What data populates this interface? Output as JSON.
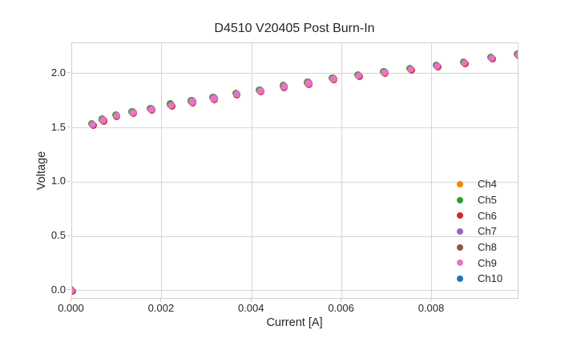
{
  "chart_data": {
    "type": "scatter",
    "title": "D4510 V20405 Post Burn-In",
    "xlabel": "Current [A]",
    "ylabel": "Voltage",
    "xlim": [
      0,
      0.00994
    ],
    "ylim": [
      -0.081,
      2.283
    ],
    "grid": true,
    "legend_position": "lower right",
    "xticks": {
      "values": [
        0,
        0.002,
        0.004,
        0.006,
        0.008
      ],
      "labels": [
        "0.000",
        "0.002",
        "0.004",
        "0.006",
        "0.008"
      ]
    },
    "yticks": {
      "values": [
        0.0,
        0.5,
        1.0,
        1.5,
        2.0
      ],
      "labels": [
        "0.0",
        "0.5",
        "1.0",
        "1.5",
        "2.0"
      ]
    },
    "x": [
      0.0,
      0.00047,
      0.0007,
      0.00099,
      0.00136,
      0.00177,
      0.00221,
      0.00268,
      0.00316,
      0.00366,
      0.00419,
      0.00471,
      0.00526,
      0.00581,
      0.00637,
      0.00695,
      0.00753,
      0.00812,
      0.00872,
      0.00933,
      0.00992
    ],
    "voltage": [
      0.0,
      1.53,
      1.57,
      1.61,
      1.64,
      1.67,
      1.71,
      1.74,
      1.77,
      1.81,
      1.84,
      1.88,
      1.91,
      1.95,
      1.98,
      2.01,
      2.04,
      2.07,
      2.1,
      2.14,
      2.17
    ],
    "series": [
      {
        "name": "Ch4",
        "color": "#ff7f0e"
      },
      {
        "name": "Ch5",
        "color": "#2ca02c"
      },
      {
        "name": "Ch6",
        "color": "#d62728"
      },
      {
        "name": "Ch7",
        "color": "#9467bd"
      },
      {
        "name": "Ch8",
        "color": "#8c564b"
      },
      {
        "name": "Ch9",
        "color": "#e377c2"
      },
      {
        "name": "Ch10",
        "color": "#1f77b4"
      }
    ],
    "overlap_note": "All channels plotted at nearly identical values; Ch9 (pink) markers drawn on top with thin green/red fringes of underlying channels visible at marker edges.",
    "colors": {
      "background": "#ffffff",
      "grid": "#d6d6d6",
      "spine": "#cfcfcf",
      "text": "#262626",
      "marker_top": "#e377c2"
    }
  }
}
